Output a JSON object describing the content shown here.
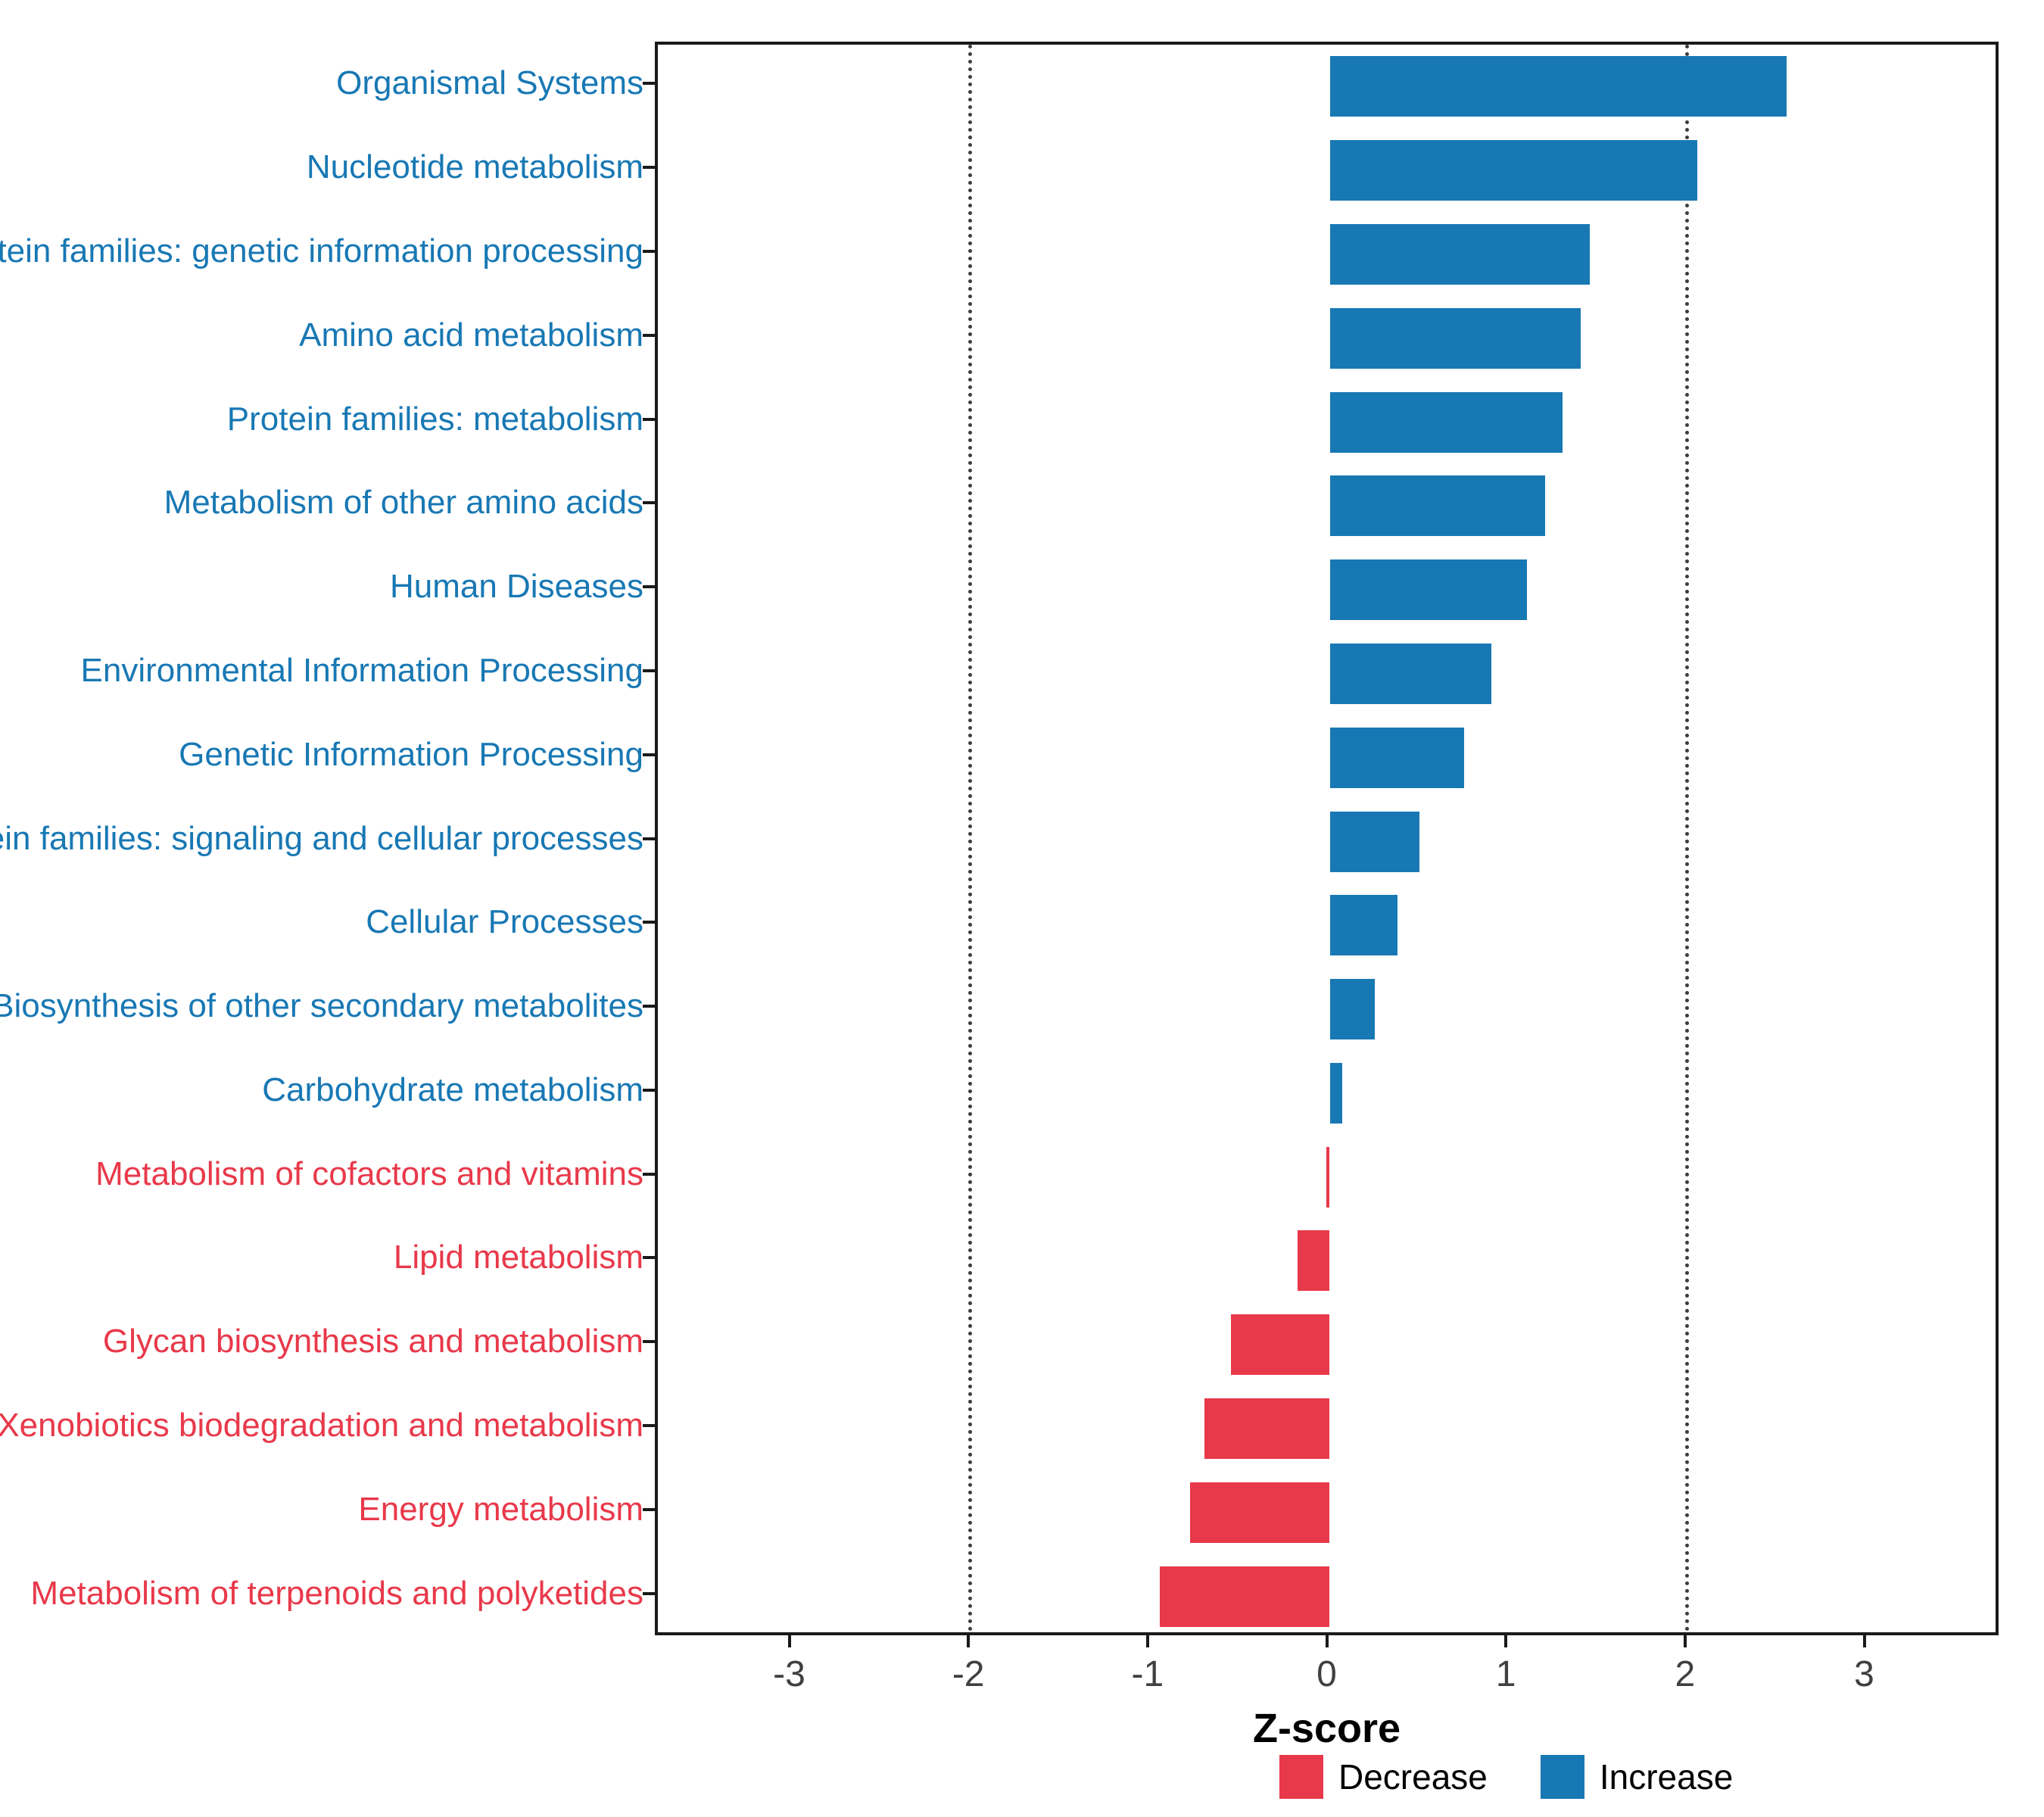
{
  "chart_data": {
    "type": "bar",
    "orientation": "horizontal",
    "title": "",
    "xlabel": "Z-score",
    "ylabel": "",
    "xlim": [
      -3.75,
      3.75
    ],
    "x_ticks": [
      -3,
      -2,
      -1,
      0,
      1,
      2,
      3
    ],
    "reference_lines": [
      -2,
      2
    ],
    "grid": false,
    "legend_position": "bottom-right",
    "categories": [
      "Organismal Systems",
      "Nucleotide metabolism",
      "Protein families: genetic information processing",
      "Amino acid metabolism",
      "Protein families: metabolism",
      "Metabolism of other amino acids",
      "Human Diseases",
      "Environmental Information Processing",
      "Genetic Information Processing",
      "Protein families: signaling and cellular processes",
      "Cellular Processes",
      "Biosynthesis of other secondary metabolites",
      "Carbohydrate metabolism",
      "Metabolism of cofactors and vitamins",
      "Lipid metabolism",
      "Glycan biosynthesis and metabolism",
      "Xenobiotics biodegradation and metabolism",
      "Energy metabolism",
      "Metabolism of terpenoids and polyketides"
    ],
    "values": [
      2.55,
      2.05,
      1.45,
      1.4,
      1.3,
      1.2,
      1.1,
      0.9,
      0.75,
      0.5,
      0.38,
      0.25,
      0.07,
      -0.02,
      -0.18,
      -0.55,
      -0.7,
      -0.78,
      -0.95
    ],
    "directions": [
      "Increase",
      "Increase",
      "Increase",
      "Increase",
      "Increase",
      "Increase",
      "Increase",
      "Increase",
      "Increase",
      "Increase",
      "Increase",
      "Increase",
      "Increase",
      "Decrease",
      "Decrease",
      "Decrease",
      "Decrease",
      "Decrease",
      "Decrease"
    ],
    "colors": {
      "increase": "#1878B4",
      "decrease": "#E8394A",
      "axis_text": "#404040",
      "panel_border": "#1a1a1a",
      "reference_line": "#3d3d3d"
    },
    "legend": [
      {
        "label": "Decrease",
        "color": "#E8394A"
      },
      {
        "label": "Increase",
        "color": "#1878B4"
      }
    ]
  }
}
